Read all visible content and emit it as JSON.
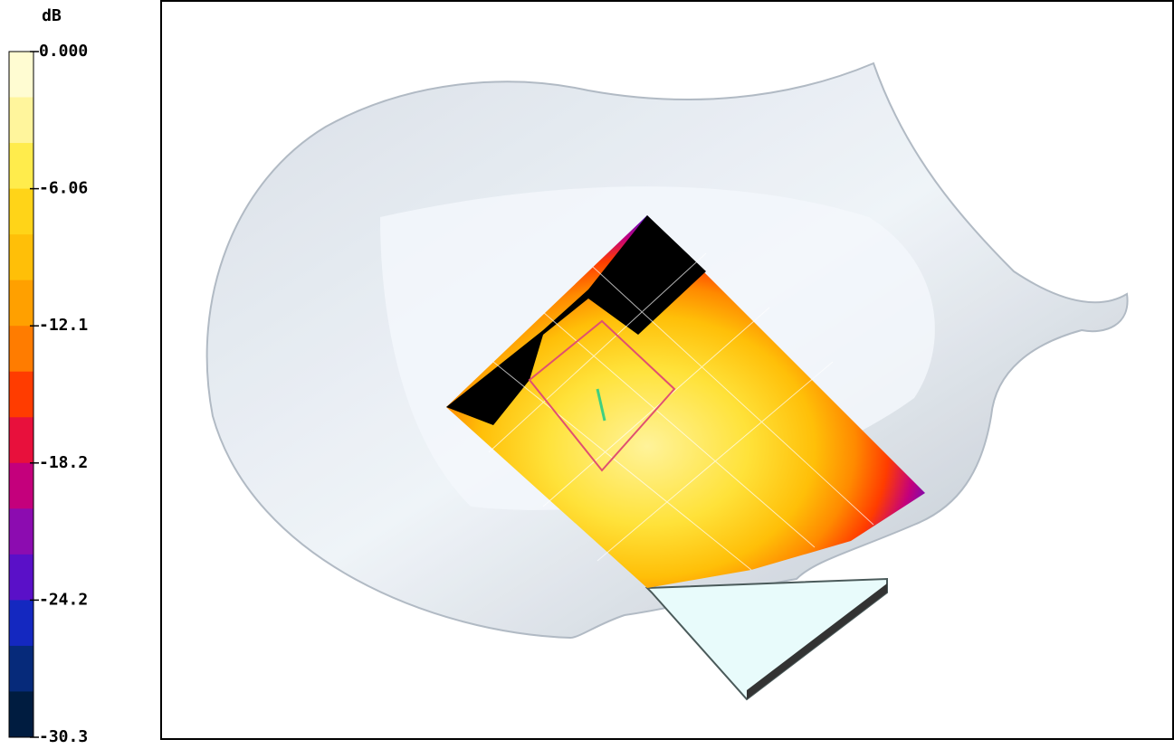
{
  "colorbar": {
    "unit": "dB",
    "labels": [
      "0.000",
      "-6.06",
      "-12.1",
      "-18.2",
      "-24.2",
      "-30.3"
    ],
    "colors": [
      "#fffcd2",
      "#fff59c",
      "#ffec4c",
      "#ffd418",
      "#ffbf08",
      "#ffa000",
      "#ff7c00",
      "#ff3c00",
      "#e8103c",
      "#c4007c",
      "#8c0cb0",
      "#5a10c8",
      "#1428c0",
      "#062a7a",
      "#001c40",
      "#000000"
    ]
  }
}
